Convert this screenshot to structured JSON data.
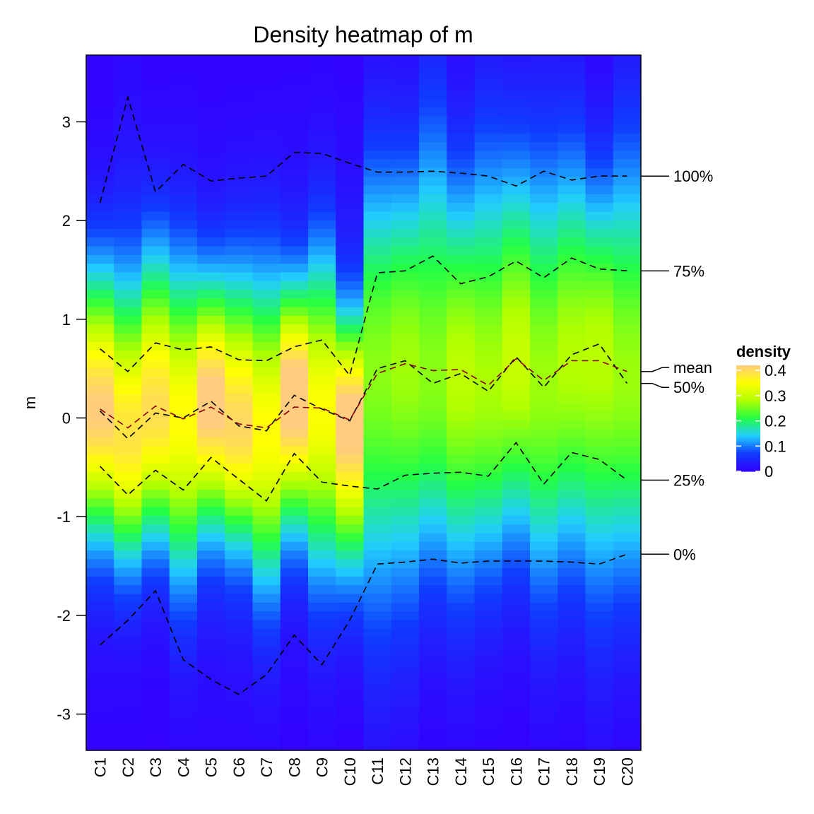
{
  "chart_data": {
    "type": "heatmap",
    "title": "Density heatmap of m",
    "ylabel": "m",
    "ylim": [
      -3.45,
      3.65
    ],
    "yticks": [
      -3,
      -2,
      -1,
      0,
      1,
      2,
      3
    ],
    "ytick_labels": [
      "-3",
      "-2",
      "-1",
      "0",
      "1",
      "2",
      "3"
    ],
    "categories": [
      "C1",
      "C2",
      "C3",
      "C4",
      "C5",
      "C6",
      "C7",
      "C8",
      "C9",
      "C10",
      "C11",
      "C12",
      "C13",
      "C14",
      "C15",
      "C16",
      "C17",
      "C18",
      "C19",
      "C20"
    ],
    "colorbar": {
      "title": "density",
      "ticks": [
        0,
        0.1,
        0.2,
        0.3,
        0.4
      ],
      "tick_labels": [
        "0",
        "0.1",
        "0.2",
        "0.3",
        "0.4"
      ],
      "range": [
        0,
        0.42
      ],
      "colors": [
        "#3300FF",
        "#0F3CFF",
        "#22CCFF",
        "#22FF44",
        "#B0FF00",
        "#FFFF00",
        "#FFCC80"
      ]
    },
    "column_stats": {
      "mean": [
        0.09,
        -0.1,
        0.12,
        -0.01,
        0.11,
        -0.06,
        -0.1,
        0.11,
        0.1,
        -0.02,
        0.45,
        0.55,
        0.48,
        0.49,
        0.33,
        0.6,
        0.38,
        0.58,
        0.58,
        0.47
      ],
      "min": [
        -2.3,
        -2.05,
        -1.75,
        -2.45,
        -2.65,
        -2.8,
        -2.6,
        -2.2,
        -2.5,
        -2.05,
        -1.48,
        -1.46,
        -1.43,
        -1.47,
        -1.45,
        -1.45,
        -1.45,
        -1.46,
        -1.48,
        -1.38
      ],
      "q25": [
        -0.49,
        -0.78,
        -0.53,
        -0.73,
        -0.4,
        -0.62,
        -0.84,
        -0.36,
        -0.65,
        -0.69,
        -0.72,
        -0.58,
        -0.56,
        -0.55,
        -0.59,
        -0.25,
        -0.67,
        -0.35,
        -0.42,
        -0.63
      ],
      "median": [
        0.07,
        -0.21,
        0.05,
        0.0,
        0.17,
        -0.08,
        -0.13,
        0.23,
        0.09,
        -0.03,
        0.5,
        0.58,
        0.35,
        0.45,
        0.27,
        0.62,
        0.31,
        0.64,
        0.75,
        0.35
      ],
      "q75": [
        0.7,
        0.47,
        0.76,
        0.69,
        0.72,
        0.59,
        0.58,
        0.72,
        0.79,
        0.43,
        1.47,
        1.49,
        1.64,
        1.36,
        1.43,
        1.59,
        1.42,
        1.62,
        1.51,
        1.49
      ],
      "max": [
        2.18,
        3.25,
        2.29,
        2.57,
        2.4,
        2.43,
        2.45,
        2.69,
        2.68,
        2.58,
        2.49,
        2.49,
        2.5,
        2.48,
        2.45,
        2.35,
        2.5,
        2.41,
        2.45,
        2.45
      ]
    },
    "right_labels": {
      "max": "100%",
      "q75": "75%",
      "mean": "mean",
      "median": "50%",
      "q25": "25%",
      "min": "0%"
    },
    "line_style": "dashed",
    "mean_line_color": "#8B0000",
    "stat_line_color": "#000000"
  }
}
